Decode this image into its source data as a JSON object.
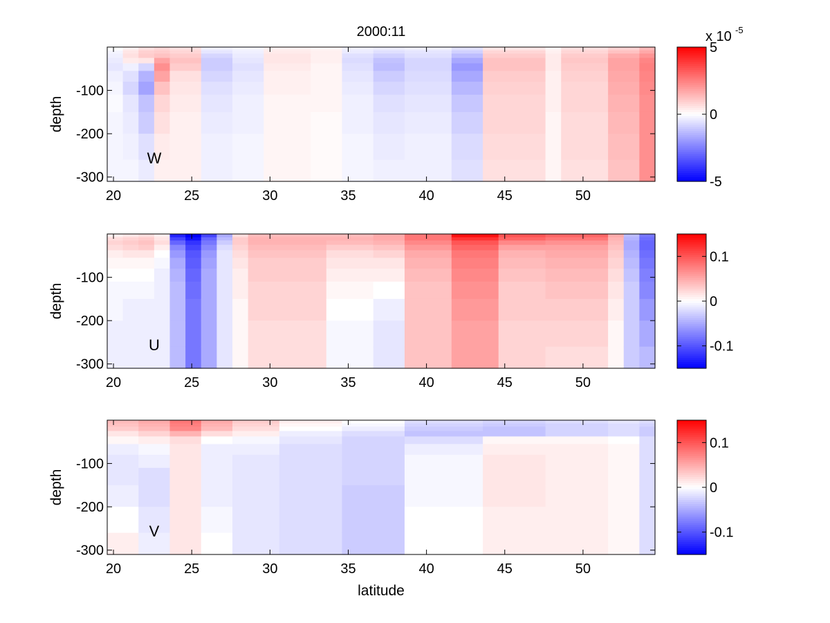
{
  "figure": {
    "title": "2000:11",
    "xlabel": "latitude"
  },
  "chart_data": [
    {
      "type": "heatmap",
      "panel_label": "W",
      "ylabel": "depth",
      "x_ticks": [
        20,
        25,
        30,
        35,
        40,
        45,
        50
      ],
      "y_ticks": [
        -100,
        -200,
        -300
      ],
      "xlim": [
        19.6,
        54.6
      ],
      "ylim": [
        -310,
        0
      ],
      "vmin": -5,
      "vmax": 5,
      "colorbar_ticks": [
        5,
        0,
        -5
      ],
      "colorbar_ticks_text": [
        "5",
        "0",
        "-5"
      ],
      "colorbar_exponent": "x 10",
      "colorbar_exponent_power": "-5",
      "depth_levels": [
        -2.5,
        -7.5,
        -15,
        -25,
        -37.5,
        -55,
        -80,
        -110,
        -150,
        -200,
        -260,
        -310
      ],
      "lat_columns": [
        {
          "lat": [
            19.6,
            20.6
          ],
          "values": [
            0,
            -0.2,
            -0.3,
            -0.4,
            -0.5,
            -0.3,
            -0.2,
            -0.1,
            -0.2,
            -0.2,
            -0.2
          ]
        },
        {
          "lat": [
            20.6,
            21.6
          ],
          "values": [
            0.3,
            0.5,
            0.6,
            0.4,
            -0.3,
            -0.6,
            -0.8,
            -0.5,
            -0.4,
            -0.3,
            -0.2
          ]
        },
        {
          "lat": [
            21.6,
            22.6
          ],
          "values": [
            0.6,
            0.9,
            1.0,
            0.5,
            -0.8,
            -1.5,
            -1.8,
            -1.2,
            -1.0,
            -0.6,
            -0.4
          ]
        },
        {
          "lat": [
            22.6,
            23.6
          ],
          "values": [
            0.8,
            1.0,
            1.2,
            1.8,
            2.2,
            1.8,
            1.2,
            0.8,
            0.6,
            0.4,
            0.3
          ]
        },
        {
          "lat": [
            23.6,
            25.6
          ],
          "values": [
            0.6,
            0.8,
            1.0,
            1.2,
            1.0,
            0.6,
            0.5,
            0.4,
            0.3,
            0.3,
            0.3
          ]
        },
        {
          "lat": [
            25.6,
            27.6
          ],
          "values": [
            -0.3,
            -0.5,
            -0.8,
            -1.0,
            -1.0,
            -0.8,
            -0.6,
            -0.5,
            -0.4,
            -0.3,
            -0.3
          ]
        },
        {
          "lat": [
            27.6,
            29.6
          ],
          "values": [
            -0.2,
            -0.3,
            -0.4,
            -0.5,
            -0.6,
            -0.5,
            -0.4,
            -0.3,
            -0.3,
            -0.2,
            -0.2
          ]
        },
        {
          "lat": [
            29.6,
            32.6
          ],
          "values": [
            0.3,
            0.4,
            0.5,
            0.5,
            0.4,
            0.3,
            0.3,
            0.2,
            0.2,
            0.2,
            0.2
          ]
        },
        {
          "lat": [
            32.6,
            34.6
          ],
          "values": [
            0.2,
            0.3,
            0.3,
            0.3,
            0.2,
            0.2,
            0.2,
            0.2,
            0.1,
            0.1,
            0.1
          ]
        },
        {
          "lat": [
            34.6,
            36.6
          ],
          "values": [
            -0.3,
            -0.4,
            -0.6,
            -0.7,
            -0.6,
            -0.5,
            -0.4,
            -0.3,
            -0.3,
            -0.2,
            -0.2
          ]
        },
        {
          "lat": [
            36.6,
            38.6
          ],
          "values": [
            -0.4,
            -0.6,
            -0.9,
            -1.2,
            -1.3,
            -1.0,
            -0.8,
            -0.6,
            -0.5,
            -0.4,
            -0.3
          ]
        },
        {
          "lat": [
            38.6,
            41.6
          ],
          "values": [
            -0.3,
            -0.5,
            -0.6,
            -0.8,
            -0.8,
            -0.7,
            -0.6,
            -0.5,
            -0.4,
            -0.3,
            -0.3
          ]
        },
        {
          "lat": [
            41.6,
            43.6
          ],
          "values": [
            -0.6,
            -0.9,
            -1.3,
            -1.7,
            -2.0,
            -1.7,
            -1.4,
            -1.1,
            -0.9,
            -0.7,
            -0.6
          ]
        },
        {
          "lat": [
            43.6,
            47.6
          ],
          "values": [
            0.5,
            0.8,
            1.0,
            1.2,
            1.2,
            1.0,
            0.9,
            0.8,
            0.8,
            0.7,
            0.6
          ]
        },
        {
          "lat": [
            47.6,
            48.6
          ],
          "values": [
            0.2,
            0.3,
            0.4,
            0.4,
            0.4,
            0.3,
            0.3,
            0.3,
            0.2,
            0.2,
            0.2
          ]
        },
        {
          "lat": [
            48.6,
            51.6
          ],
          "values": [
            0.6,
            0.8,
            1.0,
            1.1,
            1.0,
            0.9,
            0.8,
            0.8,
            0.7,
            0.7,
            0.6
          ]
        },
        {
          "lat": [
            51.6,
            53.6
          ],
          "values": [
            0.9,
            1.2,
            1.6,
            1.8,
            1.8,
            1.7,
            1.6,
            1.5,
            1.4,
            1.3,
            1.2
          ]
        },
        {
          "lat": [
            53.6,
            54.6
          ],
          "values": [
            1.4,
            1.7,
            2.1,
            2.4,
            2.5,
            2.4,
            2.3,
            2.2,
            2.2,
            2.2,
            2.2
          ]
        }
      ]
    },
    {
      "type": "heatmap",
      "panel_label": "U",
      "ylabel": "depth",
      "x_ticks": [
        20,
        25,
        30,
        35,
        40,
        45,
        50
      ],
      "y_ticks": [
        -100,
        -200,
        -300
      ],
      "xlim": [
        19.6,
        54.6
      ],
      "ylim": [
        -310,
        0
      ],
      "vmin": -0.15,
      "vmax": 0.15,
      "colorbar_ticks": [
        0.1,
        0,
        -0.1
      ],
      "colorbar_ticks_text": [
        "0.1",
        "0",
        "-0.1"
      ],
      "depth_levels": [
        -2.5,
        -7.5,
        -15,
        -25,
        -37.5,
        -55,
        -80,
        -110,
        -150,
        -200,
        -260,
        -310
      ],
      "lat_columns": [
        {
          "lat": [
            19.6,
            20.6
          ],
          "values": [
            0.01,
            0.02,
            0.025,
            0.02,
            0.01,
            0.005,
            0,
            -0.005,
            -0.005,
            -0.01,
            -0.01
          ]
        },
        {
          "lat": [
            20.6,
            21.6
          ],
          "values": [
            0.015,
            0.025,
            0.03,
            0.025,
            0.015,
            0.005,
            0,
            -0.005,
            -0.01,
            -0.01,
            -0.01
          ]
        },
        {
          "lat": [
            21.6,
            22.6
          ],
          "values": [
            0.02,
            0.03,
            0.035,
            0.03,
            0.015,
            0.005,
            0,
            -0.005,
            -0.01,
            -0.01,
            -0.01
          ]
        },
        {
          "lat": [
            22.6,
            23.6
          ],
          "values": [
            0.01,
            0.015,
            0.02,
            0.01,
            0,
            -0.005,
            -0.01,
            -0.01,
            -0.01,
            -0.01,
            -0.01
          ]
        },
        {
          "lat": [
            23.6,
            24.6
          ],
          "values": [
            -0.13,
            -0.11,
            -0.09,
            -0.07,
            -0.06,
            -0.05,
            -0.045,
            -0.04,
            -0.04,
            -0.04,
            -0.04
          ]
        },
        {
          "lat": [
            24.6,
            25.6
          ],
          "values": [
            -0.15,
            -0.14,
            -0.12,
            -0.11,
            -0.1,
            -0.095,
            -0.09,
            -0.085,
            -0.08,
            -0.08,
            -0.08
          ]
        },
        {
          "lat": [
            25.6,
            26.6
          ],
          "values": [
            -0.11,
            -0.09,
            -0.08,
            -0.07,
            -0.06,
            -0.055,
            -0.05,
            -0.05,
            -0.05,
            -0.05,
            -0.05
          ]
        },
        {
          "lat": [
            26.6,
            27.6
          ],
          "values": [
            -0.05,
            -0.04,
            -0.03,
            -0.02,
            -0.015,
            -0.015,
            -0.015,
            -0.015,
            -0.015,
            -0.015,
            -0.015
          ]
        },
        {
          "lat": [
            27.6,
            28.6
          ],
          "values": [
            0.02,
            0.03,
            0.03,
            0.025,
            0.02,
            0.015,
            0.01,
            0.01,
            0.005,
            0.005,
            0.005
          ]
        },
        {
          "lat": [
            28.6,
            33.6
          ],
          "values": [
            0.04,
            0.045,
            0.045,
            0.04,
            0.035,
            0.03,
            0.03,
            0.025,
            0.025,
            0.02,
            0.02
          ]
        },
        {
          "lat": [
            33.6,
            36.6
          ],
          "values": [
            0.04,
            0.045,
            0.04,
            0.03,
            0.02,
            0.015,
            0.01,
            0.005,
            0,
            -0.005,
            -0.005
          ]
        },
        {
          "lat": [
            36.6,
            38.6
          ],
          "values": [
            0.05,
            0.05,
            0.045,
            0.035,
            0.025,
            0.015,
            0.01,
            0,
            -0.01,
            -0.015,
            -0.015
          ]
        },
        {
          "lat": [
            38.6,
            41.6
          ],
          "values": [
            0.08,
            0.08,
            0.07,
            0.06,
            0.05,
            0.045,
            0.04,
            0.035,
            0.035,
            0.035,
            0.035
          ]
        },
        {
          "lat": [
            41.6,
            44.6
          ],
          "values": [
            0.14,
            0.12,
            0.1,
            0.09,
            0.08,
            0.075,
            0.07,
            0.065,
            0.06,
            0.055,
            0.055
          ]
        },
        {
          "lat": [
            44.6,
            47.6
          ],
          "values": [
            0.1,
            0.09,
            0.07,
            0.055,
            0.045,
            0.04,
            0.035,
            0.03,
            0.03,
            0.025,
            0.025
          ]
        },
        {
          "lat": [
            47.6,
            51.6
          ],
          "values": [
            0.09,
            0.08,
            0.065,
            0.055,
            0.05,
            0.045,
            0.04,
            0.035,
            0.03,
            0.025,
            0.02
          ]
        },
        {
          "lat": [
            51.6,
            52.6
          ],
          "values": [
            0.05,
            0.045,
            0.04,
            0.035,
            0.03,
            0.025,
            0.02,
            0.015,
            0.01,
            0.005,
            0.005
          ]
        },
        {
          "lat": [
            52.6,
            53.6
          ],
          "values": [
            -0.04,
            -0.045,
            -0.05,
            -0.05,
            -0.045,
            -0.04,
            -0.035,
            -0.03,
            -0.03,
            -0.03,
            -0.03
          ]
        },
        {
          "lat": [
            53.6,
            54.6
          ],
          "values": [
            -0.08,
            -0.085,
            -0.09,
            -0.09,
            -0.085,
            -0.08,
            -0.075,
            -0.07,
            -0.06,
            -0.05,
            -0.04
          ]
        }
      ]
    },
    {
      "type": "heatmap",
      "panel_label": "V",
      "ylabel": "depth",
      "xlabel": "latitude",
      "x_ticks": [
        20,
        25,
        30,
        35,
        40,
        45,
        50
      ],
      "y_ticks": [
        -100,
        -200,
        -300
      ],
      "xlim": [
        19.6,
        54.6
      ],
      "ylim": [
        -310,
        0
      ],
      "vmin": -0.15,
      "vmax": 0.15,
      "colorbar_ticks": [
        0.1,
        0,
        -0.1
      ],
      "colorbar_ticks_text": [
        "0.1",
        "0",
        "-0.1"
      ],
      "depth_levels": [
        -2.5,
        -7.5,
        -15,
        -25,
        -37.5,
        -55,
        -80,
        -110,
        -150,
        -200,
        -260,
        -310
      ],
      "lat_columns": [
        {
          "lat": [
            19.6,
            21.6
          ],
          "values": [
            0.04,
            0.035,
            0.03,
            0.015,
            0.005,
            -0.01,
            -0.015,
            -0.015,
            -0.01,
            0,
            0.01
          ]
        },
        {
          "lat": [
            21.6,
            23.6
          ],
          "values": [
            0.05,
            0.045,
            0.04,
            0.025,
            0.01,
            -0.005,
            -0.01,
            -0.02,
            -0.02,
            -0.015,
            -0.01
          ]
        },
        {
          "lat": [
            23.6,
            25.6
          ],
          "values": [
            0.08,
            0.075,
            0.07,
            0.045,
            0.02,
            0.015,
            0.015,
            0.015,
            0.015,
            0.015,
            0.015
          ]
        },
        {
          "lat": [
            25.6,
            27.6
          ],
          "values": [
            0.05,
            0.045,
            0.04,
            0.02,
            0,
            -0.01,
            -0.01,
            -0.01,
            -0.01,
            -0.005,
            0
          ]
        },
        {
          "lat": [
            27.6,
            30.6
          ],
          "values": [
            0.03,
            0.025,
            0.02,
            0.01,
            -0.005,
            -0.01,
            -0.015,
            -0.015,
            -0.015,
            -0.015,
            -0.015
          ]
        },
        {
          "lat": [
            30.6,
            34.6
          ],
          "values": [
            0.01,
            0.005,
            0,
            -0.01,
            -0.015,
            -0.02,
            -0.02,
            -0.02,
            -0.02,
            -0.02,
            -0.02
          ]
        },
        {
          "lat": [
            34.6,
            38.6
          ],
          "values": [
            0,
            -0.005,
            -0.01,
            -0.02,
            -0.025,
            -0.025,
            -0.025,
            -0.025,
            -0.03,
            -0.03,
            -0.03
          ]
        },
        {
          "lat": [
            38.6,
            43.6
          ],
          "values": [
            -0.02,
            -0.025,
            -0.03,
            -0.035,
            -0.02,
            -0.01,
            -0.005,
            -0.005,
            -0.005,
            0,
            0
          ]
        },
        {
          "lat": [
            43.6,
            47.6
          ],
          "values": [
            -0.025,
            -0.03,
            -0.035,
            -0.035,
            0.005,
            0.01,
            0.015,
            0.015,
            0.015,
            0.01,
            0.01
          ]
        },
        {
          "lat": [
            47.6,
            51.6
          ],
          "values": [
            -0.02,
            -0.025,
            -0.025,
            -0.025,
            0.005,
            0.01,
            0.01,
            0.01,
            0.01,
            0.01,
            0.01
          ]
        },
        {
          "lat": [
            51.6,
            53.6
          ],
          "values": [
            -0.015,
            -0.02,
            -0.02,
            -0.02,
            0,
            0.005,
            0.005,
            0.005,
            0.005,
            0.005,
            0.005
          ]
        },
        {
          "lat": [
            53.6,
            54.6
          ],
          "values": [
            -0.02,
            -0.025,
            -0.03,
            -0.03,
            -0.02,
            -0.02,
            -0.02,
            -0.02,
            -0.02,
            -0.02,
            -0.02
          ]
        }
      ]
    }
  ]
}
